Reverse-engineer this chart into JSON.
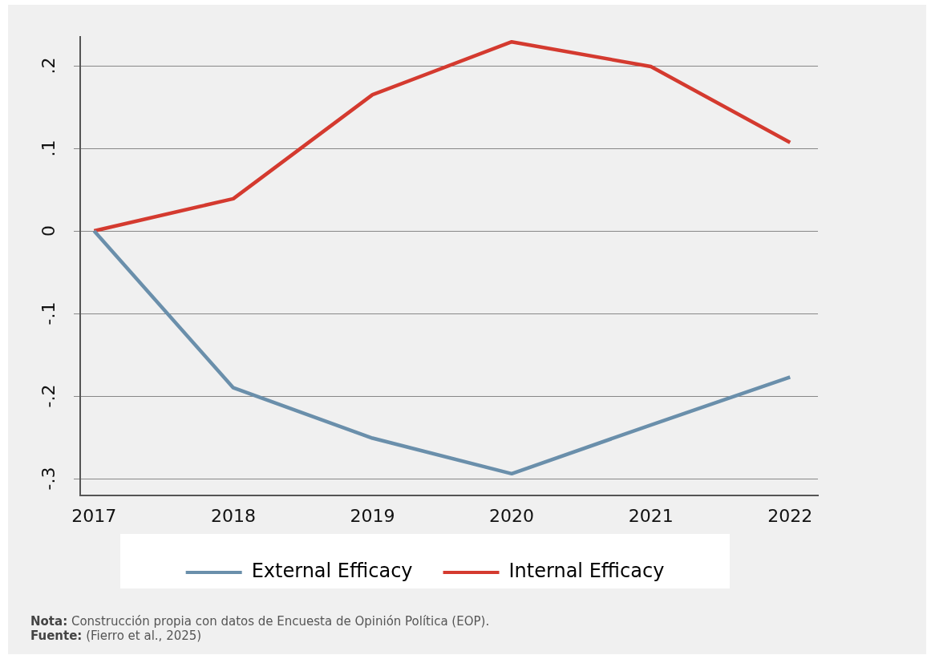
{
  "chart_data": {
    "type": "line",
    "x": [
      2017,
      2018,
      2019,
      2020,
      2021,
      2022
    ],
    "series": [
      {
        "name": "External Efficacy",
        "color": "#6a8fab",
        "values": [
          0,
          -0.19,
          -0.251,
          -0.294,
          -0.235,
          -0.177
        ]
      },
      {
        "name": "Internal Efficacy",
        "color": "#d43a2f",
        "values": [
          0,
          0.039,
          0.165,
          0.229,
          0.199,
          0.107
        ]
      }
    ],
    "xlim": [
      2016.9,
      2022.2
    ],
    "xticks": [
      2017,
      2018,
      2019,
      2020,
      2021,
      2022
    ],
    "ylim": [
      -0.32,
      0.235
    ],
    "yticks": [
      {
        "value": -0.3,
        "label": "-.3"
      },
      {
        "value": -0.2,
        "label": "-.2"
      },
      {
        "value": -0.1,
        "label": "-.1"
      },
      {
        "value": 0,
        "label": "0"
      },
      {
        "value": 0.1,
        "label": ".1"
      },
      {
        "value": 0.2,
        "label": ".2"
      }
    ],
    "grid": "y",
    "legend": "bottom",
    "marker": "none",
    "line_style": "solid",
    "annotations": [
      "Nota: Construcción propia con datos de Encuesta de Opinión Política (EOP).",
      "Fuente: (Fierro et al., 2025)"
    ]
  }
}
